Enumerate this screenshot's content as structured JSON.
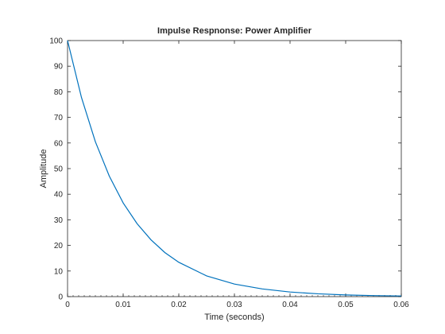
{
  "chart_data": {
    "type": "line",
    "title": "Impulse Respnonse: Power Amplifier",
    "xlabel": "Time (seconds)",
    "ylabel": "Amplitude",
    "xlim": [
      0,
      0.06
    ],
    "ylim": [
      0,
      100
    ],
    "x_ticks": [
      "0",
      "0.01",
      "0.02",
      "0.03",
      "0.04",
      "0.05",
      "0.06"
    ],
    "y_ticks": [
      "0",
      "10",
      "20",
      "30",
      "40",
      "50",
      "60",
      "70",
      "80",
      "90",
      "100"
    ],
    "grid": false,
    "series": [
      {
        "color": "#0072bd",
        "x": [
          0,
          0.0025,
          0.005,
          0.0075,
          0.01,
          0.0125,
          0.015,
          0.0175,
          0.02,
          0.025,
          0.03,
          0.035,
          0.04,
          0.045,
          0.05,
          0.055,
          0.06
        ],
        "y": [
          100,
          77.8,
          60.5,
          47.1,
          36.6,
          28.5,
          22.2,
          17.2,
          13.4,
          8.1,
          4.9,
          3.0,
          1.8,
          1.1,
          0.67,
          0.41,
          0.25
        ]
      }
    ]
  },
  "colors": {
    "axis": "#262626",
    "line": "#0072bd",
    "background": "#ffffff"
  }
}
